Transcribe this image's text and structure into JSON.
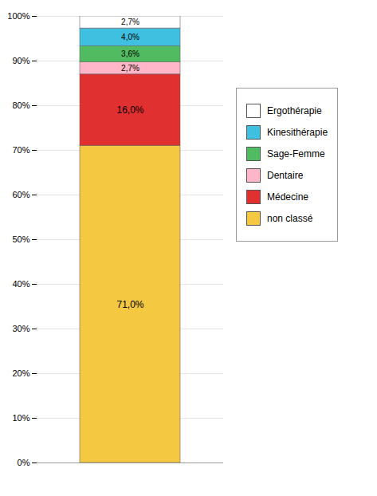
{
  "chart_data": {
    "type": "bar",
    "stacked": true,
    "categories": [
      null
    ],
    "series": [
      {
        "name": "non classé",
        "color": "#F5C842",
        "values": [
          71.0
        ],
        "value_labels": [
          "71,0%"
        ]
      },
      {
        "name": "Médecine",
        "color": "#E03030",
        "values": [
          16.0
        ],
        "value_labels": [
          "16,0%"
        ]
      },
      {
        "name": "Dentaire",
        "color": "#FFB6C8",
        "values": [
          2.7
        ],
        "value_labels": [
          "2,7%"
        ]
      },
      {
        "name": "Sage-Femme",
        "color": "#50BB60",
        "values": [
          3.6
        ],
        "value_labels": [
          "3,6%"
        ]
      },
      {
        "name": "Kinesithérapie",
        "color": "#40C0E0",
        "values": [
          4.0
        ],
        "value_labels": [
          "4,0%"
        ]
      },
      {
        "name": "Ergothérapie",
        "color": "#FFFFFF",
        "values": [
          2.7
        ],
        "value_labels": [
          "2,7%"
        ]
      }
    ],
    "ylim": [
      0,
      100
    ],
    "yticks": [
      {
        "value": 0,
        "label": "0%"
      },
      {
        "value": 10,
        "label": "10%"
      },
      {
        "value": 20,
        "label": "20%"
      },
      {
        "value": 30,
        "label": "30%"
      },
      {
        "value": 40,
        "label": "40%"
      },
      {
        "value": 50,
        "label": "50%"
      },
      {
        "value": 60,
        "label": "60%"
      },
      {
        "value": 70,
        "label": "70%"
      },
      {
        "value": 80,
        "label": "80%"
      },
      {
        "value": 90,
        "label": "90%"
      },
      {
        "value": 100,
        "label": "100%"
      }
    ],
    "grid": true,
    "legend": "right",
    "data_labels": true,
    "tick_labels": "y"
  }
}
